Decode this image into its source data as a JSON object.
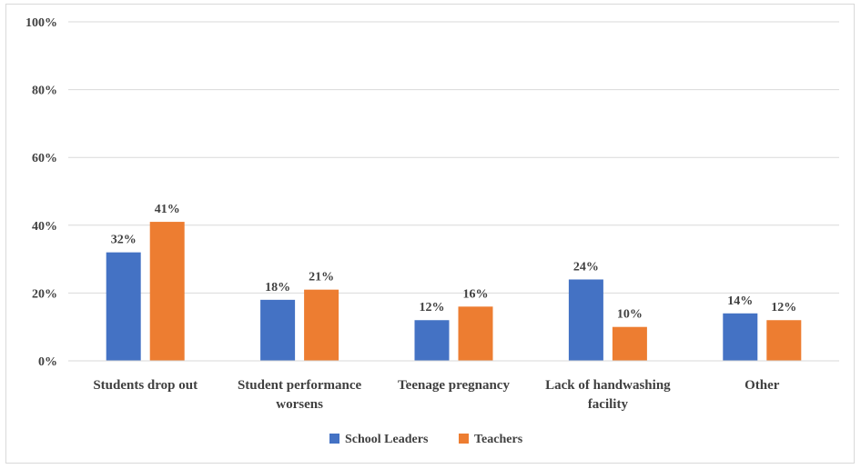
{
  "chart_data": {
    "type": "bar",
    "categories": [
      [
        "Students drop out"
      ],
      [
        "Student performance",
        "worsens"
      ],
      [
        "Teenage pregnancy"
      ],
      [
        "Lack of handwashing",
        "facility"
      ],
      [
        "Other"
      ]
    ],
    "series": [
      {
        "name": "School Leaders",
        "color": "#4472c4",
        "values": [
          32,
          18,
          12,
          24,
          14
        ],
        "labels": [
          "32%",
          "18%",
          "12%",
          "24%",
          "14%"
        ]
      },
      {
        "name": "Teachers",
        "color": "#ed7d31",
        "values": [
          41,
          21,
          16,
          10,
          12
        ],
        "labels": [
          "41%",
          "21%",
          "16%",
          "10%",
          "12%"
        ]
      }
    ],
    "ylim": [
      0,
      100
    ],
    "yticks": [
      0,
      20,
      40,
      60,
      80,
      100
    ],
    "ytick_labels": [
      "0%",
      "20%",
      "40%",
      "60%",
      "80%",
      "100%"
    ],
    "grid": true,
    "legend": "bottom-center",
    "title": "",
    "xlabel": "",
    "ylabel": ""
  }
}
